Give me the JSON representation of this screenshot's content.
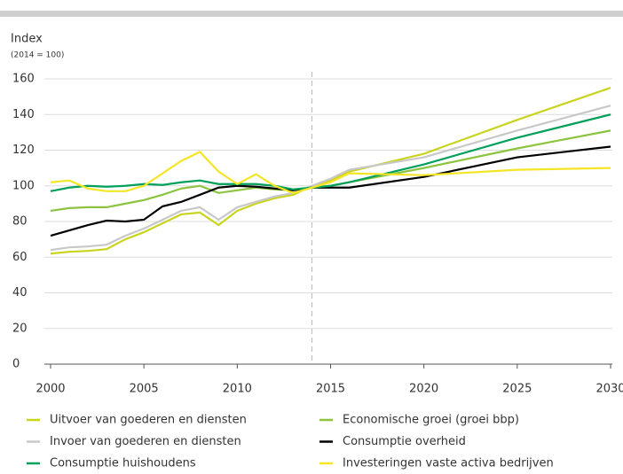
{
  "chart_data": {
    "type": "line",
    "y_label": "Index",
    "y_sublabel": "(2014 = 100)",
    "x": [
      2000,
      2001,
      2002,
      2003,
      2004,
      2005,
      2006,
      2007,
      2008,
      2009,
      2010,
      2011,
      2012,
      2013,
      2014,
      2015,
      2016,
      2020,
      2025,
      2030
    ],
    "xlim": [
      2000,
      2030
    ],
    "xticks": [
      2000,
      2005,
      2010,
      2015,
      2020,
      2025,
      2030
    ],
    "ylim": [
      0,
      160
    ],
    "yticks": [
      0,
      20,
      40,
      60,
      80,
      100,
      120,
      140,
      160
    ],
    "grid": true,
    "vline": 2014,
    "legend": "bottom",
    "series": [
      {
        "name": "Uitvoer van goederen en diensten",
        "color": "#c9d41f",
        "values": [
          62,
          63,
          63.5,
          64.5,
          70,
          74,
          79,
          84,
          85,
          78,
          86,
          90,
          93,
          95,
          100,
          103,
          108,
          118,
          137,
          155
        ]
      },
      {
        "name": "Economische groei (groei bbp)",
        "color": "#8cc43f",
        "values": [
          86,
          87.5,
          88,
          88,
          90,
          92,
          95,
          98.5,
          100,
          96,
          97.5,
          99,
          98,
          97.5,
          99,
          100,
          102,
          110,
          121,
          131
        ]
      },
      {
        "name": "Invoer van goederen en diensten",
        "color": "#c8c8c8",
        "values": [
          64,
          65.5,
          66,
          67,
          72,
          76,
          81,
          86,
          88,
          81,
          88,
          91,
          94,
          96,
          100,
          104,
          109,
          116,
          131,
          145
        ]
      },
      {
        "name": "Consumptie overheid",
        "color": "#000000",
        "values": [
          72,
          75,
          78,
          80.5,
          80,
          81,
          88.5,
          91,
          95,
          99,
          100,
          99.5,
          98.5,
          97.5,
          99,
          99,
          99,
          105,
          116,
          122
        ]
      },
      {
        "name": "Consumptie huishoudens",
        "color": "#00a05a",
        "values": [
          97,
          99,
          100,
          99.5,
          100,
          101,
          100.5,
          102,
          103,
          101,
          101,
          101,
          100,
          98,
          99,
          100,
          102,
          112,
          127,
          140
        ]
      },
      {
        "name": "Investeringen vaste activa bedrijven",
        "color": "#f4e526",
        "values": [
          102,
          103,
          98.5,
          97,
          97,
          100,
          107,
          114,
          119,
          108,
          101,
          106.5,
          100,
          96,
          99,
          102,
          107,
          106,
          109,
          110
        ]
      }
    ]
  }
}
